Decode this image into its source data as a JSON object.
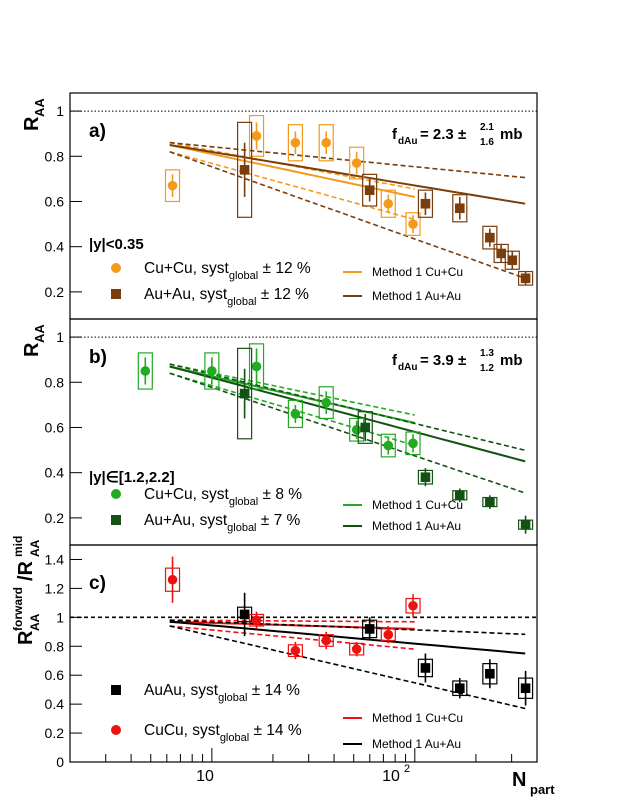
{
  "figure": {
    "x_axis": {
      "label": "N",
      "label_sub": "part",
      "type": "log",
      "range": [
        2,
        400
      ],
      "tick_10": "10",
      "tick_100_base": "10",
      "tick_100_exp": "2"
    },
    "legend_method_label": "Method 1",
    "legend_syst": "syst",
    "legend_syst_sub": "global"
  },
  "chart_data": [
    {
      "type": "scatter",
      "panel_label": "a)",
      "ylabel": "R",
      "ylabel_sub": "AA",
      "ylim": [
        0.08,
        1.08
      ],
      "yticks": [
        "0.2",
        "0.4",
        "0.6",
        "0.8",
        "1"
      ],
      "rapidity_label": "|y|<0.35",
      "fdau": {
        "prefix": "f",
        "sub": "dAu",
        "value": "= 2.3 ±",
        "up": "2.1",
        "down": "1.6",
        "unit": "mb"
      },
      "series": [
        {
          "name": "Cu+Cu",
          "marker": "circle",
          "color": "#f39a1c",
          "syst_global": "± 12 %",
          "x": [
            6.4,
            16.6,
            25.8,
            36.6,
            51.7,
            74.0,
            98.0
          ],
          "y": [
            0.67,
            0.89,
            0.86,
            0.86,
            0.77,
            0.59,
            0.5
          ],
          "stat": [
            0.05,
            0.06,
            0.05,
            0.05,
            0.05,
            0.04,
            0.04
          ],
          "syst": [
            0.07,
            0.09,
            0.08,
            0.08,
            0.07,
            0.06,
            0.05
          ]
        },
        {
          "name": "Au+Au",
          "marker": "square",
          "color": "#7a3d0b",
          "syst_global": "± 12 %",
          "x": [
            14.5,
            59.9,
            112.8,
            166.6,
            234.3,
            266.3,
            302.2,
            351.4
          ],
          "y": [
            0.74,
            0.65,
            0.59,
            0.57,
            0.44,
            0.37,
            0.34,
            0.26
          ],
          "stat": [
            0.12,
            0.05,
            0.05,
            0.05,
            0.04,
            0.04,
            0.04,
            0.03
          ],
          "syst": [
            0.21,
            0.07,
            0.06,
            0.06,
            0.05,
            0.04,
            0.04,
            0.03
          ]
        }
      ],
      "models": [
        {
          "name": "Cu+Cu",
          "color": "#f39a1c",
          "x_end": 100,
          "center": [
            0.85,
            0.62
          ],
          "band": [
            0.03,
            0.1
          ]
        },
        {
          "name": "Au+Au",
          "color": "#7a3d0b",
          "x_end": 350,
          "center": [
            0.85,
            0.59
          ],
          "band": [
            0.03,
            0.33
          ]
        }
      ]
    },
    {
      "type": "scatter",
      "panel_label": "b)",
      "ylabel": "R",
      "ylabel_sub": "AA",
      "ylim": [
        0.08,
        1.08
      ],
      "yticks": [
        "0.2",
        "0.4",
        "0.6",
        "0.8",
        "1"
      ],
      "rapidity_label": "|y|∈[1.2,2.2]",
      "fdau": {
        "prefix": "f",
        "sub": "dAu",
        "value": "= 3.9 ±",
        "up": "1.3",
        "down": "1.2",
        "unit": "mb"
      },
      "series": [
        {
          "name": "Cu+Cu",
          "marker": "circle",
          "color": "#22aa22",
          "syst_global": "± 8 %",
          "x": [
            4.7,
            10.0,
            16.6,
            25.8,
            36.6,
            51.7,
            74.0,
            98.0
          ],
          "y": [
            0.85,
            0.85,
            0.87,
            0.66,
            0.71,
            0.59,
            0.52,
            0.53
          ],
          "stat": [
            0.06,
            0.06,
            0.08,
            0.04,
            0.05,
            0.04,
            0.04,
            0.04
          ],
          "syst": [
            0.08,
            0.08,
            0.1,
            0.06,
            0.07,
            0.05,
            0.05,
            0.05
          ]
        },
        {
          "name": "Au+Au",
          "marker": "square",
          "color": "#145214",
          "syst_global": "± 7 %",
          "x": [
            14.5,
            57.0,
            112.8,
            166.6,
            234.3,
            351.4
          ],
          "y": [
            0.75,
            0.6,
            0.38,
            0.3,
            0.27,
            0.17
          ],
          "stat": [
            0.11,
            0.06,
            0.04,
            0.03,
            0.03,
            0.04
          ],
          "syst": [
            0.2,
            0.07,
            0.03,
            0.02,
            0.02,
            0.02
          ]
        }
      ],
      "models": [
        {
          "name": "Cu+Cu",
          "color": "#22aa22",
          "x_end": 100,
          "center": [
            0.87,
            0.62
          ],
          "band": [
            0.03,
            0.1
          ]
        },
        {
          "name": "Au+Au",
          "color": "#145214",
          "x_end": 350,
          "center": [
            0.87,
            0.45
          ],
          "band": [
            0.03,
            0.14
          ]
        }
      ]
    },
    {
      "type": "scatter",
      "panel_label": "c)",
      "ylabel": "R",
      "ylabel_sup": "forward",
      "ylabel_sub": "AA",
      "ylabel_den": "R",
      "ylabel_den_sup": "mid",
      "ylabel_den_sub": "AA",
      "ylim": [
        0,
        1.5
      ],
      "yticks": [
        "0",
        "0.2",
        "0.4",
        "0.6",
        "0.8",
        "1",
        "1.2",
        "1.4"
      ],
      "series": [
        {
          "name": "AuAu",
          "marker": "square",
          "color": "#000000",
          "syst_global": "± 14 %",
          "x": [
            14.5,
            59.9,
            112.8,
            166.6,
            234.3,
            351.4
          ],
          "y": [
            1.02,
            0.92,
            0.65,
            0.51,
            0.61,
            0.51
          ],
          "stat": [
            0.15,
            0.08,
            0.1,
            0.07,
            0.1,
            0.12
          ],
          "syst": [
            0.05,
            0.06,
            0.06,
            0.05,
            0.07,
            0.07
          ]
        },
        {
          "name": "CuCu",
          "marker": "circle",
          "color": "#ee1111",
          "syst_global": "± 14 %",
          "x": [
            6.4,
            16.6,
            25.8,
            36.6,
            51.7,
            74.0,
            98.0
          ],
          "y": [
            1.26,
            0.98,
            0.77,
            0.84,
            0.78,
            0.88,
            1.08
          ],
          "stat": [
            0.16,
            0.06,
            0.06,
            0.06,
            0.05,
            0.06,
            0.08
          ],
          "syst": [
            0.08,
            0.04,
            0.04,
            0.04,
            0.04,
            0.04,
            0.05
          ]
        }
      ],
      "models": [
        {
          "name": "Cu+Cu",
          "color": "#ee1111",
          "x_end": 100,
          "center": [
            0.97,
            0.92
          ],
          "band": [
            0.03,
            0.14
          ]
        },
        {
          "name": "Au+Au",
          "color": "#000000",
          "x_end": 350,
          "center": [
            0.97,
            0.75
          ],
          "band": [
            0.03,
            0.38
          ]
        }
      ]
    }
  ]
}
